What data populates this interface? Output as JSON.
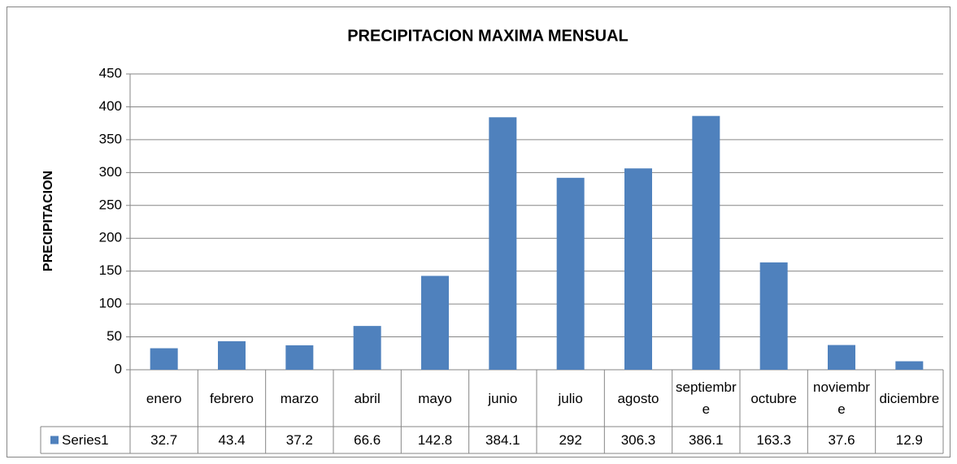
{
  "chart_data": {
    "type": "bar",
    "title": "PRECIPITACION MAXIMA MENSUAL",
    "y_label": "PRECIPITACION",
    "categories": [
      "enero",
      "febrero",
      "marzo",
      "abril",
      "mayo",
      "junio",
      "julio",
      "agosto",
      "septiembre",
      "octubre",
      "noviembre",
      "diciembre"
    ],
    "series": [
      {
        "name": "Series1",
        "color": "#4f81bd",
        "values": [
          32.7,
          43.4,
          37.2,
          66.6,
          142.8,
          384.1,
          292,
          306.3,
          386.1,
          163.3,
          37.6,
          12.9
        ]
      }
    ],
    "ylim": [
      0,
      450
    ],
    "yticks": [
      0,
      50,
      100,
      150,
      200,
      250,
      300,
      350,
      400,
      450
    ],
    "grid": true,
    "data_table": true
  }
}
